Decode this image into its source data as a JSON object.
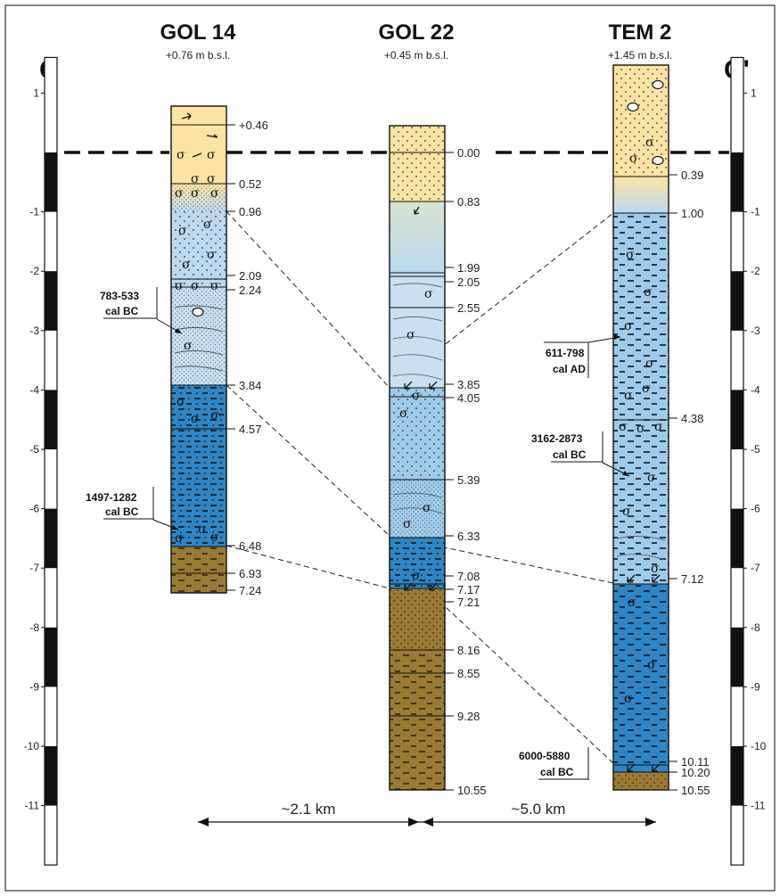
{
  "section": {
    "left_label": "C",
    "right_label": "C'",
    "scale_ticks": [
      "1",
      "-1",
      "-2",
      "-3",
      "-4",
      "-5",
      "-6",
      "-7",
      "-8",
      "-9",
      "-10",
      "-11"
    ],
    "distances": [
      "~2.1 km",
      "~5.0 km"
    ]
  },
  "colors": {
    "sand": "#fbe3a4",
    "pale_sand": "#f4eecb",
    "light_blue": "#bcd9ef",
    "mid_blue": "#8ec0e6",
    "dark_blue": "#2f86c6",
    "brown": "#9b7a34",
    "green_grey": "#d7e3d0"
  },
  "cores": [
    {
      "name": "GOL 14",
      "elevation": "+0.76 m b.s.l.",
      "top": 0.76,
      "bottom": 7.24,
      "depth_labels": [
        "+0.46",
        "0.52",
        "0.96",
        "2.09",
        "2.24",
        "3.84",
        "4.57",
        "6.48",
        "6.93",
        "7.24"
      ],
      "dates": [
        {
          "line1": "783-533",
          "line2": "cal BC"
        },
        {
          "line1": "1497-1282",
          "line2": "cal BC"
        }
      ]
    },
    {
      "name": "GOL 22",
      "elevation": "+0.45 m b.s.l.",
      "top": -0.45,
      "bottom": 10.55,
      "depth_labels": [
        "0.00",
        "0.83",
        "1.99",
        "2.05",
        "2.55",
        "3.85",
        "4.05",
        "5.39",
        "6.33",
        "7.08",
        "7.17",
        "7.21",
        "8.16",
        "8.55",
        "9.28",
        "10.55"
      ]
    },
    {
      "name": "TEM 2",
      "elevation": "+1.45 m b.s.l.",
      "top": -1.45,
      "bottom": 10.55,
      "depth_labels": [
        "0.39",
        "1.00",
        "4.38",
        "7.12",
        "10.11",
        "10.20",
        "10.55"
      ],
      "dates": [
        {
          "line1": "611-798",
          "line2": "cal AD"
        },
        {
          "line1": "3162-2873",
          "line2": "cal BC"
        },
        {
          "line1": "6000-5880",
          "line2": "cal BC"
        }
      ]
    }
  ]
}
